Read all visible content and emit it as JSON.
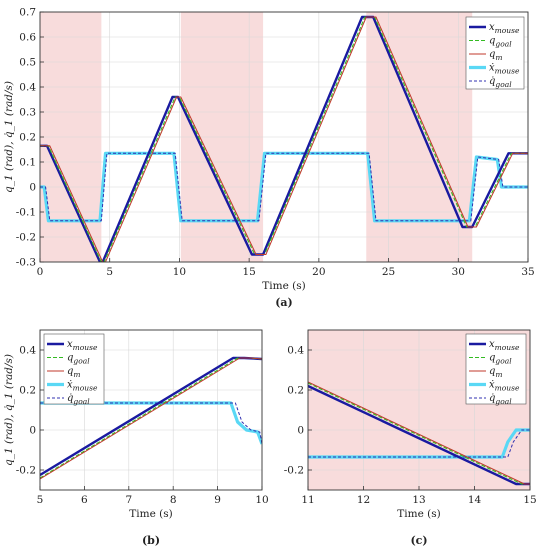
{
  "colors": {
    "x_mouse": "#1a1aa0",
    "q_goal": "#33bb22",
    "q_m": "#c0392b",
    "xdot_mouse": "#5ad8f5",
    "qdot_goal": "#3030b0",
    "shade": "#f8dcdc"
  },
  "chart_data": [
    {
      "type": "line",
      "caption": "(a)",
      "xlabel": "Time (s)",
      "ylabel": "q_1 (rad), q̇_1 (rad/s)",
      "xlim": [
        0,
        35
      ],
      "ylim": [
        -0.3,
        0.7
      ],
      "xticks": [
        0,
        5,
        10,
        15,
        20,
        25,
        30,
        35
      ],
      "yticks": [
        -0.3,
        -0.2,
        -0.1,
        0,
        0.1,
        0.2,
        0.3,
        0.4,
        0.5,
        0.6,
        0.7
      ],
      "grid": true,
      "legend_position": "top-right",
      "shaded_intervals": [
        [
          0,
          4.4
        ],
        [
          10.1,
          16.0
        ],
        [
          23.4,
          31.0
        ]
      ],
      "series": [
        {
          "key": "x_mouse",
          "name": "x_mouse",
          "x": [
            0,
            0.5,
            4.3,
            4.5,
            9.5,
            9.9,
            15.2,
            16.0,
            23.1,
            23.9,
            30.3,
            31.0,
            33.6,
            35
          ],
          "y": [
            0.165,
            0.165,
            -0.3,
            -0.3,
            0.36,
            0.36,
            -0.27,
            -0.27,
            0.68,
            0.68,
            -0.16,
            -0.16,
            0.135,
            0.135
          ]
        },
        {
          "key": "q_goal",
          "name": "q_goal",
          "x": [
            0,
            0.6,
            4.4,
            4.6,
            9.7,
            10.0,
            15.4,
            16.1,
            23.3,
            24.0,
            30.6,
            31.2,
            33.8,
            35
          ],
          "y": [
            0.165,
            0.165,
            -0.3,
            -0.3,
            0.36,
            0.36,
            -0.27,
            -0.27,
            0.68,
            0.68,
            -0.16,
            -0.16,
            0.135,
            0.135
          ]
        },
        {
          "key": "q_m",
          "name": "q_m",
          "x": [
            0,
            0.7,
            4.5,
            4.7,
            9.8,
            10.1,
            15.5,
            16.2,
            23.4,
            24.1,
            30.7,
            31.3,
            33.9,
            35
          ],
          "y": [
            0.165,
            0.165,
            -0.3,
            -0.3,
            0.36,
            0.36,
            -0.27,
            -0.27,
            0.68,
            0.68,
            -0.16,
            -0.16,
            0.135,
            0.135
          ]
        },
        {
          "key": "xdot_mouse",
          "name": "ẋ_mouse",
          "x": [
            0,
            0.3,
            0.6,
            4.0,
            4.3,
            4.7,
            9.3,
            9.6,
            10.1,
            15.2,
            15.6,
            16.1,
            23.0,
            23.5,
            24.0,
            30.3,
            30.8,
            31.3,
            32.8,
            33.1,
            35
          ],
          "y": [
            0,
            0,
            -0.135,
            -0.135,
            -0.135,
            0.135,
            0.135,
            0.135,
            -0.135,
            -0.135,
            -0.135,
            0.135,
            0.135,
            0.135,
            -0.135,
            -0.135,
            -0.135,
            0.12,
            0.11,
            0,
            0
          ]
        },
        {
          "key": "qdot_goal",
          "name": "q̇_goal",
          "x": [
            0,
            0.4,
            0.7,
            4.1,
            4.4,
            4.8,
            9.4,
            9.7,
            10.2,
            15.3,
            15.7,
            16.2,
            23.1,
            23.6,
            24.1,
            30.4,
            30.9,
            31.4,
            32.9,
            33.2,
            35
          ],
          "y": [
            0,
            0,
            -0.135,
            -0.135,
            -0.135,
            0.135,
            0.135,
            0.135,
            -0.135,
            -0.135,
            -0.135,
            0.135,
            0.135,
            0.135,
            -0.135,
            -0.135,
            -0.135,
            0.12,
            0.11,
            0,
            0
          ]
        }
      ]
    },
    {
      "type": "line",
      "caption": "(b)",
      "xlabel": "Time (s)",
      "ylabel": "q_1 (rad), q̇_1 (rad/s)",
      "xlim": [
        5,
        10
      ],
      "ylim": [
        -0.3,
        0.5
      ],
      "xticks": [
        5,
        6,
        7,
        8,
        9,
        10
      ],
      "yticks": [
        -0.2,
        0,
        0.2,
        0.4
      ],
      "grid": true,
      "legend_position": "top-left",
      "shaded_intervals": [],
      "series": [
        {
          "key": "x_mouse",
          "name": "x_mouse",
          "x": [
            5,
            9.35,
            9.6,
            10
          ],
          "y": [
            -0.225,
            0.36,
            0.36,
            0.355
          ]
        },
        {
          "key": "q_goal",
          "name": "q_goal",
          "x": [
            5,
            9.45,
            9.7,
            10
          ],
          "y": [
            -0.24,
            0.36,
            0.36,
            0.355
          ]
        },
        {
          "key": "q_m",
          "name": "q_m",
          "x": [
            5,
            9.5,
            9.75,
            10
          ],
          "y": [
            -0.245,
            0.36,
            0.36,
            0.355
          ]
        },
        {
          "key": "xdot_mouse",
          "name": "ẋ_mouse",
          "x": [
            5,
            9.3,
            9.45,
            9.65,
            9.9,
            10
          ],
          "y": [
            0.135,
            0.135,
            0.04,
            0.0,
            -0.01,
            -0.07
          ]
        },
        {
          "key": "qdot_goal",
          "name": "q̇_goal",
          "x": [
            5,
            9.4,
            9.55,
            9.75,
            9.95,
            10
          ],
          "y": [
            0.135,
            0.135,
            0.04,
            0.0,
            -0.01,
            -0.07
          ]
        }
      ]
    },
    {
      "type": "line",
      "caption": "(c)",
      "xlabel": "Time (s)",
      "ylabel": "",
      "xlim": [
        11,
        15
      ],
      "ylim": [
        -0.3,
        0.5
      ],
      "xticks": [
        11,
        12,
        13,
        14,
        15
      ],
      "yticks": [
        -0.2,
        0,
        0.2,
        0.4
      ],
      "grid": true,
      "legend_position": "top-right",
      "shaded_intervals": [
        [
          11,
          15
        ]
      ],
      "series": [
        {
          "key": "x_mouse",
          "name": "x_mouse",
          "x": [
            11,
            14.75,
            15
          ],
          "y": [
            0.22,
            -0.27,
            -0.27
          ]
        },
        {
          "key": "q_goal",
          "name": "q_goal",
          "x": [
            11,
            14.85,
            15
          ],
          "y": [
            0.235,
            -0.27,
            -0.27
          ]
        },
        {
          "key": "q_m",
          "name": "q_m",
          "x": [
            11,
            14.9,
            15
          ],
          "y": [
            0.24,
            -0.27,
            -0.27
          ]
        },
        {
          "key": "xdot_mouse",
          "name": "ẋ_mouse",
          "x": [
            11,
            14.5,
            14.6,
            14.75,
            15
          ],
          "y": [
            -0.135,
            -0.135,
            -0.06,
            0,
            0
          ]
        },
        {
          "key": "qdot_goal",
          "name": "q̇_goal",
          "x": [
            11,
            14.6,
            14.7,
            14.85,
            15
          ],
          "y": [
            -0.135,
            -0.135,
            -0.06,
            0,
            0
          ]
        }
      ]
    }
  ]
}
